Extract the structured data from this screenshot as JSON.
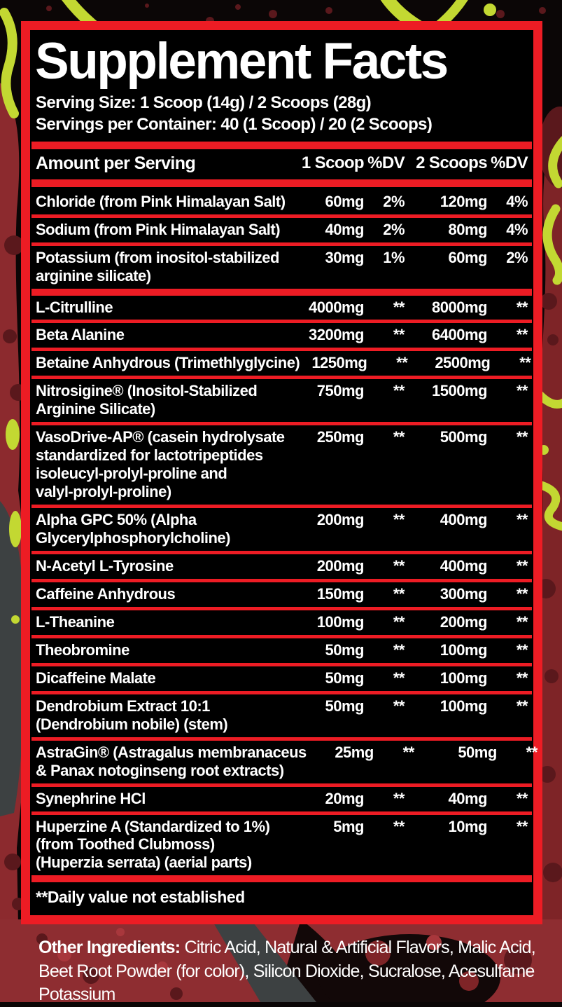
{
  "colors": {
    "accent_red": "#ed1c24",
    "panel_black": "#000000",
    "text_white": "#ffffff",
    "splatter_red": "#8c2a2e",
    "splatter_maroon": "#5a181c",
    "lime_green": "#c3d832",
    "gray_shape": "#3d4142"
  },
  "header": {
    "title": "Supplement Facts",
    "serving_size": "Serving Size: 1 Scoop (14g) / 2 Scoops (28g)",
    "servings_per_container": "Servings per Container: 40 (1 Scoop) / 20 (2 Scoops)"
  },
  "table": {
    "columns": [
      "Amount per Serving",
      "1 Scoop",
      "%DV",
      "2 Scoops",
      "%DV"
    ],
    "rows": [
      {
        "name": "Chloride (from Pink Himalayan Salt)",
        "scoop1": "60mg",
        "dv1": "2%",
        "scoop2": "120mg",
        "dv2": "4%",
        "sep": "thin"
      },
      {
        "name": "Sodium (from Pink Himalayan Salt)",
        "scoop1": "40mg",
        "dv1": "2%",
        "scoop2": "80mg",
        "dv2": "4%",
        "sep": "thin"
      },
      {
        "name": "Potassium (from inositol-stabilized\narginine silicate)",
        "scoop1": "30mg",
        "dv1": "1%",
        "scoop2": "60mg",
        "dv2": "2%",
        "sep": "thick"
      },
      {
        "name": "L-Citrulline",
        "scoop1": "4000mg",
        "dv1": "**",
        "scoop2": "8000mg",
        "dv2": "**",
        "sep": "thin"
      },
      {
        "name": "Beta Alanine",
        "scoop1": "3200mg",
        "dv1": "**",
        "scoop2": "6400mg",
        "dv2": "**",
        "sep": "thin"
      },
      {
        "name": "Betaine Anhydrous (Trimethlyglycine)",
        "scoop1": "1250mg",
        "dv1": "**",
        "scoop2": "2500mg",
        "dv2": "**",
        "sep": "thin"
      },
      {
        "name": "Nitrosigine® (Inositol-Stabilized\nArginine Silicate)",
        "scoop1": "750mg",
        "dv1": "**",
        "scoop2": "1500mg",
        "dv2": "**",
        "sep": "thin"
      },
      {
        "name": "VasoDrive-AP® (casein hydrolysate\nstandardized for lactotripeptides\nisoleucyl-prolyl-proline and\nvalyl-prolyl-proline)",
        "scoop1": "250mg",
        "dv1": "**",
        "scoop2": "500mg",
        "dv2": "**",
        "sep": "thin"
      },
      {
        "name": "Alpha GPC 50% (Alpha\nGlycerylphosphorylcholine)",
        "scoop1": "200mg",
        "dv1": "**",
        "scoop2": "400mg",
        "dv2": "**",
        "sep": "thin"
      },
      {
        "name": "N-Acetyl L-Tyrosine",
        "scoop1": "200mg",
        "dv1": "**",
        "scoop2": "400mg",
        "dv2": "**",
        "sep": "thin"
      },
      {
        "name": "Caffeine Anhydrous",
        "scoop1": "150mg",
        "dv1": "**",
        "scoop2": "300mg",
        "dv2": "**",
        "sep": "thin"
      },
      {
        "name": "L-Theanine",
        "scoop1": "100mg",
        "dv1": "**",
        "scoop2": "200mg",
        "dv2": "**",
        "sep": "thin"
      },
      {
        "name": "Theobromine",
        "scoop1": "50mg",
        "dv1": "**",
        "scoop2": "100mg",
        "dv2": "**",
        "sep": "thin"
      },
      {
        "name": "Dicaffeine Malate",
        "scoop1": "50mg",
        "dv1": "**",
        "scoop2": "100mg",
        "dv2": "**",
        "sep": "thin"
      },
      {
        "name": "Dendrobium Extract 10:1\n(Dendrobium nobile) (stem)",
        "scoop1": "50mg",
        "dv1": "**",
        "scoop2": "100mg",
        "dv2": "**",
        "sep": "thin"
      },
      {
        "name": "AstraGin® (Astragalus membranaceus\n& Panax notoginseng root extracts)",
        "scoop1": "25mg",
        "dv1": "**",
        "scoop2": "50mg",
        "dv2": "**",
        "sep": "thin"
      },
      {
        "name": "Synephrine HCl",
        "scoop1": "20mg",
        "dv1": "**",
        "scoop2": "40mg",
        "dv2": "**",
        "sep": "thin"
      },
      {
        "name": "Huperzine A (Standardized to 1%)\n(from Toothed Clubmoss)\n(Huperzia serrata) (aerial parts)",
        "scoop1": "5mg",
        "dv1": "**",
        "scoop2": "10mg",
        "dv2": "**",
        "sep": "thick"
      }
    ],
    "footnote": "**Daily value not established"
  },
  "other_ingredients": {
    "label": "Other Ingredients:",
    "text": " Citric Acid, Natural & Artificial Flavors, Malic Acid, Beet Root Powder (for color), Silicon Dioxide, Sucralose, Acesulfame Potassium"
  }
}
